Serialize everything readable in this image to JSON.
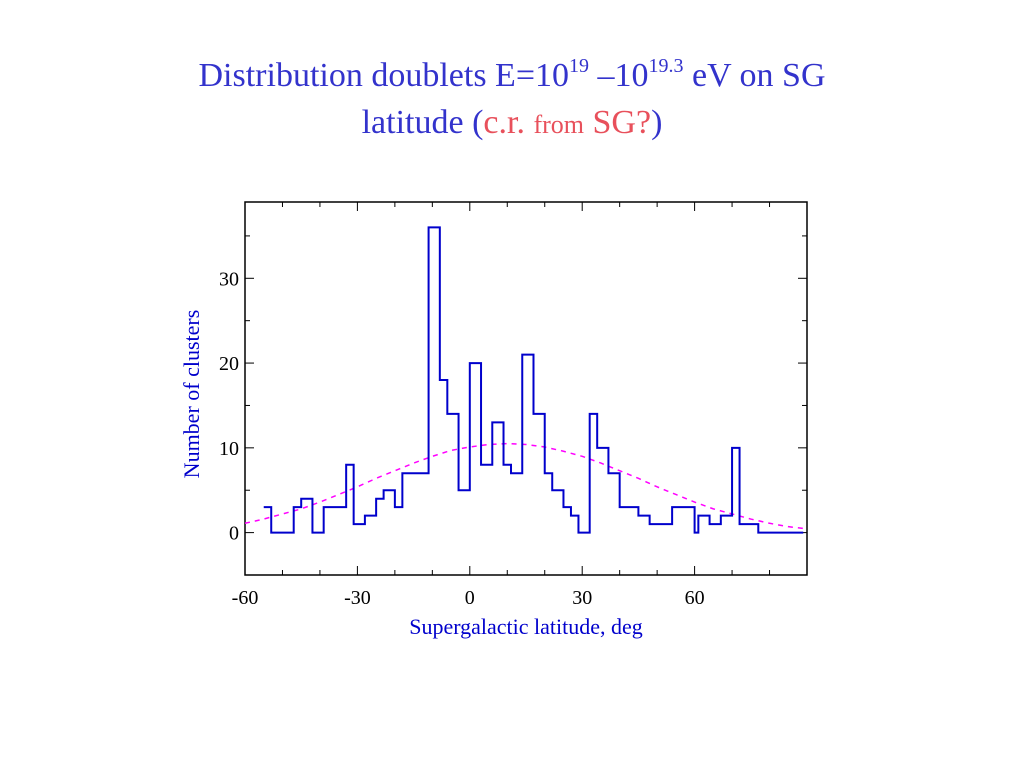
{
  "title": {
    "line1_a": "Distribution  doublets E=10",
    "line1_sup1": "19",
    "line1_b": " –10",
    "line1_sup2": "19.3",
    "line1_c": " eV on  SG",
    "line2_a": "latitude (",
    "line2_b": "c.r. ",
    "line2_c": "from",
    "line2_d": " SG?",
    "line2_e": ")"
  },
  "colors": {
    "title": "#3333cc",
    "accent_red": "#e8505b",
    "histogram": "#0000cc",
    "fit": "#ff00ff"
  },
  "chart_data": {
    "type": "line",
    "xlabel": "Supergalactic latitude, deg",
    "ylabel": "Number of clusters",
    "xlim": [
      -60,
      90
    ],
    "ylim": [
      -5,
      39
    ],
    "xticks": [
      -60,
      -30,
      0,
      30,
      60
    ],
    "yticks": [
      0,
      10,
      20,
      30
    ],
    "grid": false,
    "series": [
      {
        "style": "step-histogram",
        "bin_edges": [
          -55,
          -53,
          -50,
          -47,
          -45,
          -42,
          -39,
          -36,
          -33,
          -31,
          -28,
          -25,
          -23,
          -20,
          -18,
          -15,
          -11,
          -8,
          -6,
          -3,
          0,
          3,
          6,
          9,
          11,
          14,
          17,
          20,
          22,
          25,
          27,
          29,
          32,
          34,
          37,
          40,
          42,
          45,
          48,
          51,
          54,
          56,
          60,
          61,
          64,
          67,
          70,
          72,
          75,
          77,
          80,
          82,
          84,
          89
        ],
        "values": [
          3,
          0,
          0,
          3,
          4,
          0,
          3,
          3,
          8,
          1,
          2,
          4,
          5,
          3,
          7,
          7,
          36,
          18,
          14,
          5,
          20,
          8,
          13,
          8,
          7,
          21,
          14,
          7,
          5,
          3,
          2,
          0,
          14,
          10,
          7,
          3,
          3,
          2,
          1,
          1,
          3,
          3,
          0,
          2,
          1,
          2,
          10,
          1,
          1,
          0,
          0,
          0,
          0
        ]
      },
      {
        "style": "dashed-gaussian",
        "x": [
          -60,
          -55,
          -50,
          -45,
          -40,
          -35,
          -30,
          -25,
          -20,
          -15,
          -10,
          -5,
          0,
          5,
          10,
          15,
          20,
          25,
          30,
          35,
          40,
          45,
          50,
          55,
          60,
          65,
          70,
          75,
          80,
          85,
          89
        ],
        "y": [
          1.1,
          1.6,
          2.2,
          2.8,
          3.6,
          4.5,
          5.4,
          6.4,
          7.3,
          8.2,
          9.0,
          9.7,
          10.1,
          10.4,
          10.5,
          10.4,
          10.1,
          9.6,
          9.0,
          8.2,
          7.3,
          6.4,
          5.4,
          4.5,
          3.6,
          2.8,
          2.2,
          1.6,
          1.1,
          0.7,
          0.5
        ]
      }
    ]
  }
}
